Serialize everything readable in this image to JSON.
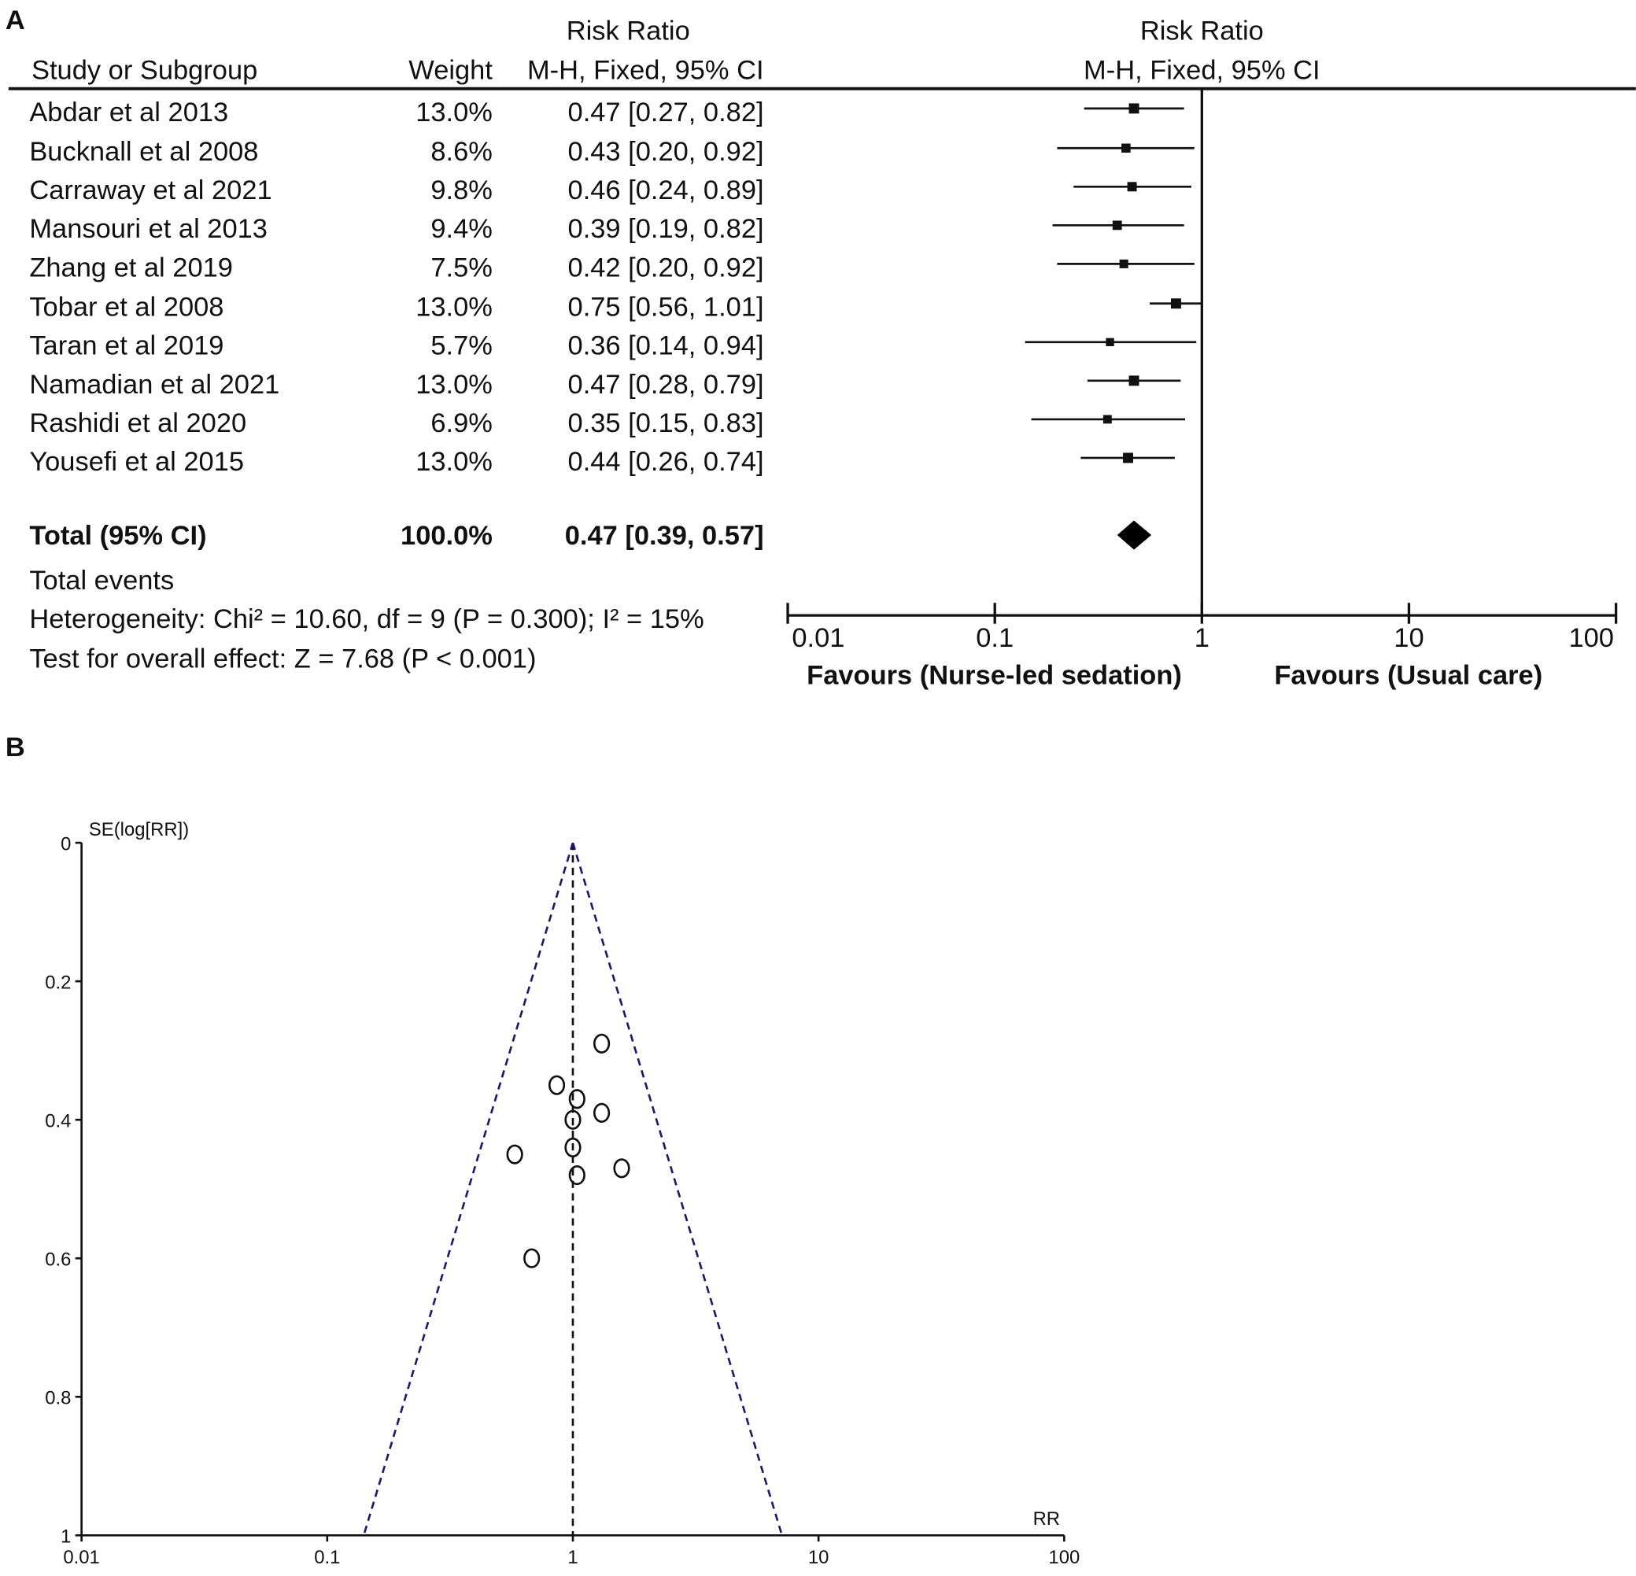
{
  "panel_labels": {
    "a": "A",
    "b": "B"
  },
  "chart_data": [
    {
      "type": "forest",
      "header": {
        "study_col": "Study or Subgroup",
        "weight_col": "Weight",
        "effect_title": "Risk Ratio",
        "effect_method": "M-H, Fixed, 95% CI",
        "plot_title": "Risk Ratio",
        "plot_method": "M-H, Fixed, 95% CI"
      },
      "studies": [
        {
          "name": "Abdar et al 2013",
          "weight": "13.0%",
          "ci_text": "0.47 [0.27, 0.82]",
          "rr": 0.47,
          "lo": 0.27,
          "hi": 0.82,
          "w": 13.0
        },
        {
          "name": "Bucknall et al 2008",
          "weight": "8.6%",
          "ci_text": "0.43 [0.20, 0.92]",
          "rr": 0.43,
          "lo": 0.2,
          "hi": 0.92,
          "w": 8.6
        },
        {
          "name": "Carraway et al 2021",
          "weight": "9.8%",
          "ci_text": "0.46 [0.24, 0.89]",
          "rr": 0.46,
          "lo": 0.24,
          "hi": 0.89,
          "w": 9.8
        },
        {
          "name": "Mansouri et al 2013",
          "weight": "9.4%",
          "ci_text": "0.39 [0.19, 0.82]",
          "rr": 0.39,
          "lo": 0.19,
          "hi": 0.82,
          "w": 9.4
        },
        {
          "name": "Zhang et al 2019",
          "weight": "7.5%",
          "ci_text": "0.42 [0.20, 0.92]",
          "rr": 0.42,
          "lo": 0.2,
          "hi": 0.92,
          "w": 7.5
        },
        {
          "name": "Tobar et al 2008",
          "weight": "13.0%",
          "ci_text": "0.75 [0.56, 1.01]",
          "rr": 0.75,
          "lo": 0.56,
          "hi": 1.01,
          "w": 13.0
        },
        {
          "name": "Taran et al 2019",
          "weight": "5.7%",
          "ci_text": "0.36 [0.14, 0.94]",
          "rr": 0.36,
          "lo": 0.14,
          "hi": 0.94,
          "w": 5.7
        },
        {
          "name": "Namadian et al 2021",
          "weight": "13.0%",
          "ci_text": "0.47 [0.28, 0.79]",
          "rr": 0.47,
          "lo": 0.28,
          "hi": 0.79,
          "w": 13.0
        },
        {
          "name": "Rashidi et al 2020",
          "weight": "6.9%",
          "ci_text": "0.35 [0.15, 0.83]",
          "rr": 0.35,
          "lo": 0.15,
          "hi": 0.83,
          "w": 6.9
        },
        {
          "name": "Yousefi et al 2015",
          "weight": "13.0%",
          "ci_text": "0.44 [0.26, 0.74]",
          "rr": 0.44,
          "lo": 0.26,
          "hi": 0.74,
          "w": 13.0
        }
      ],
      "total": {
        "name": "Total (95% CI)",
        "weight": "100.0%",
        "ci_text": "0.47 [0.39, 0.57]",
        "rr": 0.47,
        "lo": 0.39,
        "hi": 0.57
      },
      "total_events": "Total events",
      "heterogeneity": "Heterogeneity: Chi² = 10.60, df = 9 (P = 0.300); I² = 15%",
      "overall_effect": "Test for overall effect: Z = 7.68 (P < 0.001)",
      "x_scale": "log",
      "xlim": [
        0.01,
        100
      ],
      "x_ticks": [
        "0.01",
        "0.1",
        "1",
        "10",
        "100"
      ],
      "favours_left": "Favours (Nurse-led sedation)",
      "favours_right": "Favours (Usual care)"
    },
    {
      "type": "scatter",
      "subtype": "funnel",
      "xlabel": "RR",
      "ylabel": "SE(log[RR])",
      "x_scale": "log",
      "xlim": [
        0.01,
        100
      ],
      "ylim": [
        1,
        0
      ],
      "y_inverted": true,
      "x_ticks": [
        "0.01",
        "0.1",
        "1",
        "10",
        "100"
      ],
      "y_ticks": [
        "0",
        "0.2",
        "0.4",
        "0.6",
        "0.8",
        "1"
      ],
      "center_rr": 1,
      "funnel_color": "#1a1a70",
      "points": [
        {
          "rr": 1.31,
          "se": 0.29
        },
        {
          "rr": 0.86,
          "se": 0.35
        },
        {
          "rr": 1.04,
          "se": 0.37
        },
        {
          "rr": 1.0,
          "se": 0.4
        },
        {
          "rr": 1.31,
          "se": 0.39
        },
        {
          "rr": 1.0,
          "se": 0.44
        },
        {
          "rr": 0.58,
          "se": 0.45
        },
        {
          "rr": 1.58,
          "se": 0.47
        },
        {
          "rr": 1.04,
          "se": 0.48
        },
        {
          "rr": 0.68,
          "se": 0.6
        }
      ]
    }
  ]
}
